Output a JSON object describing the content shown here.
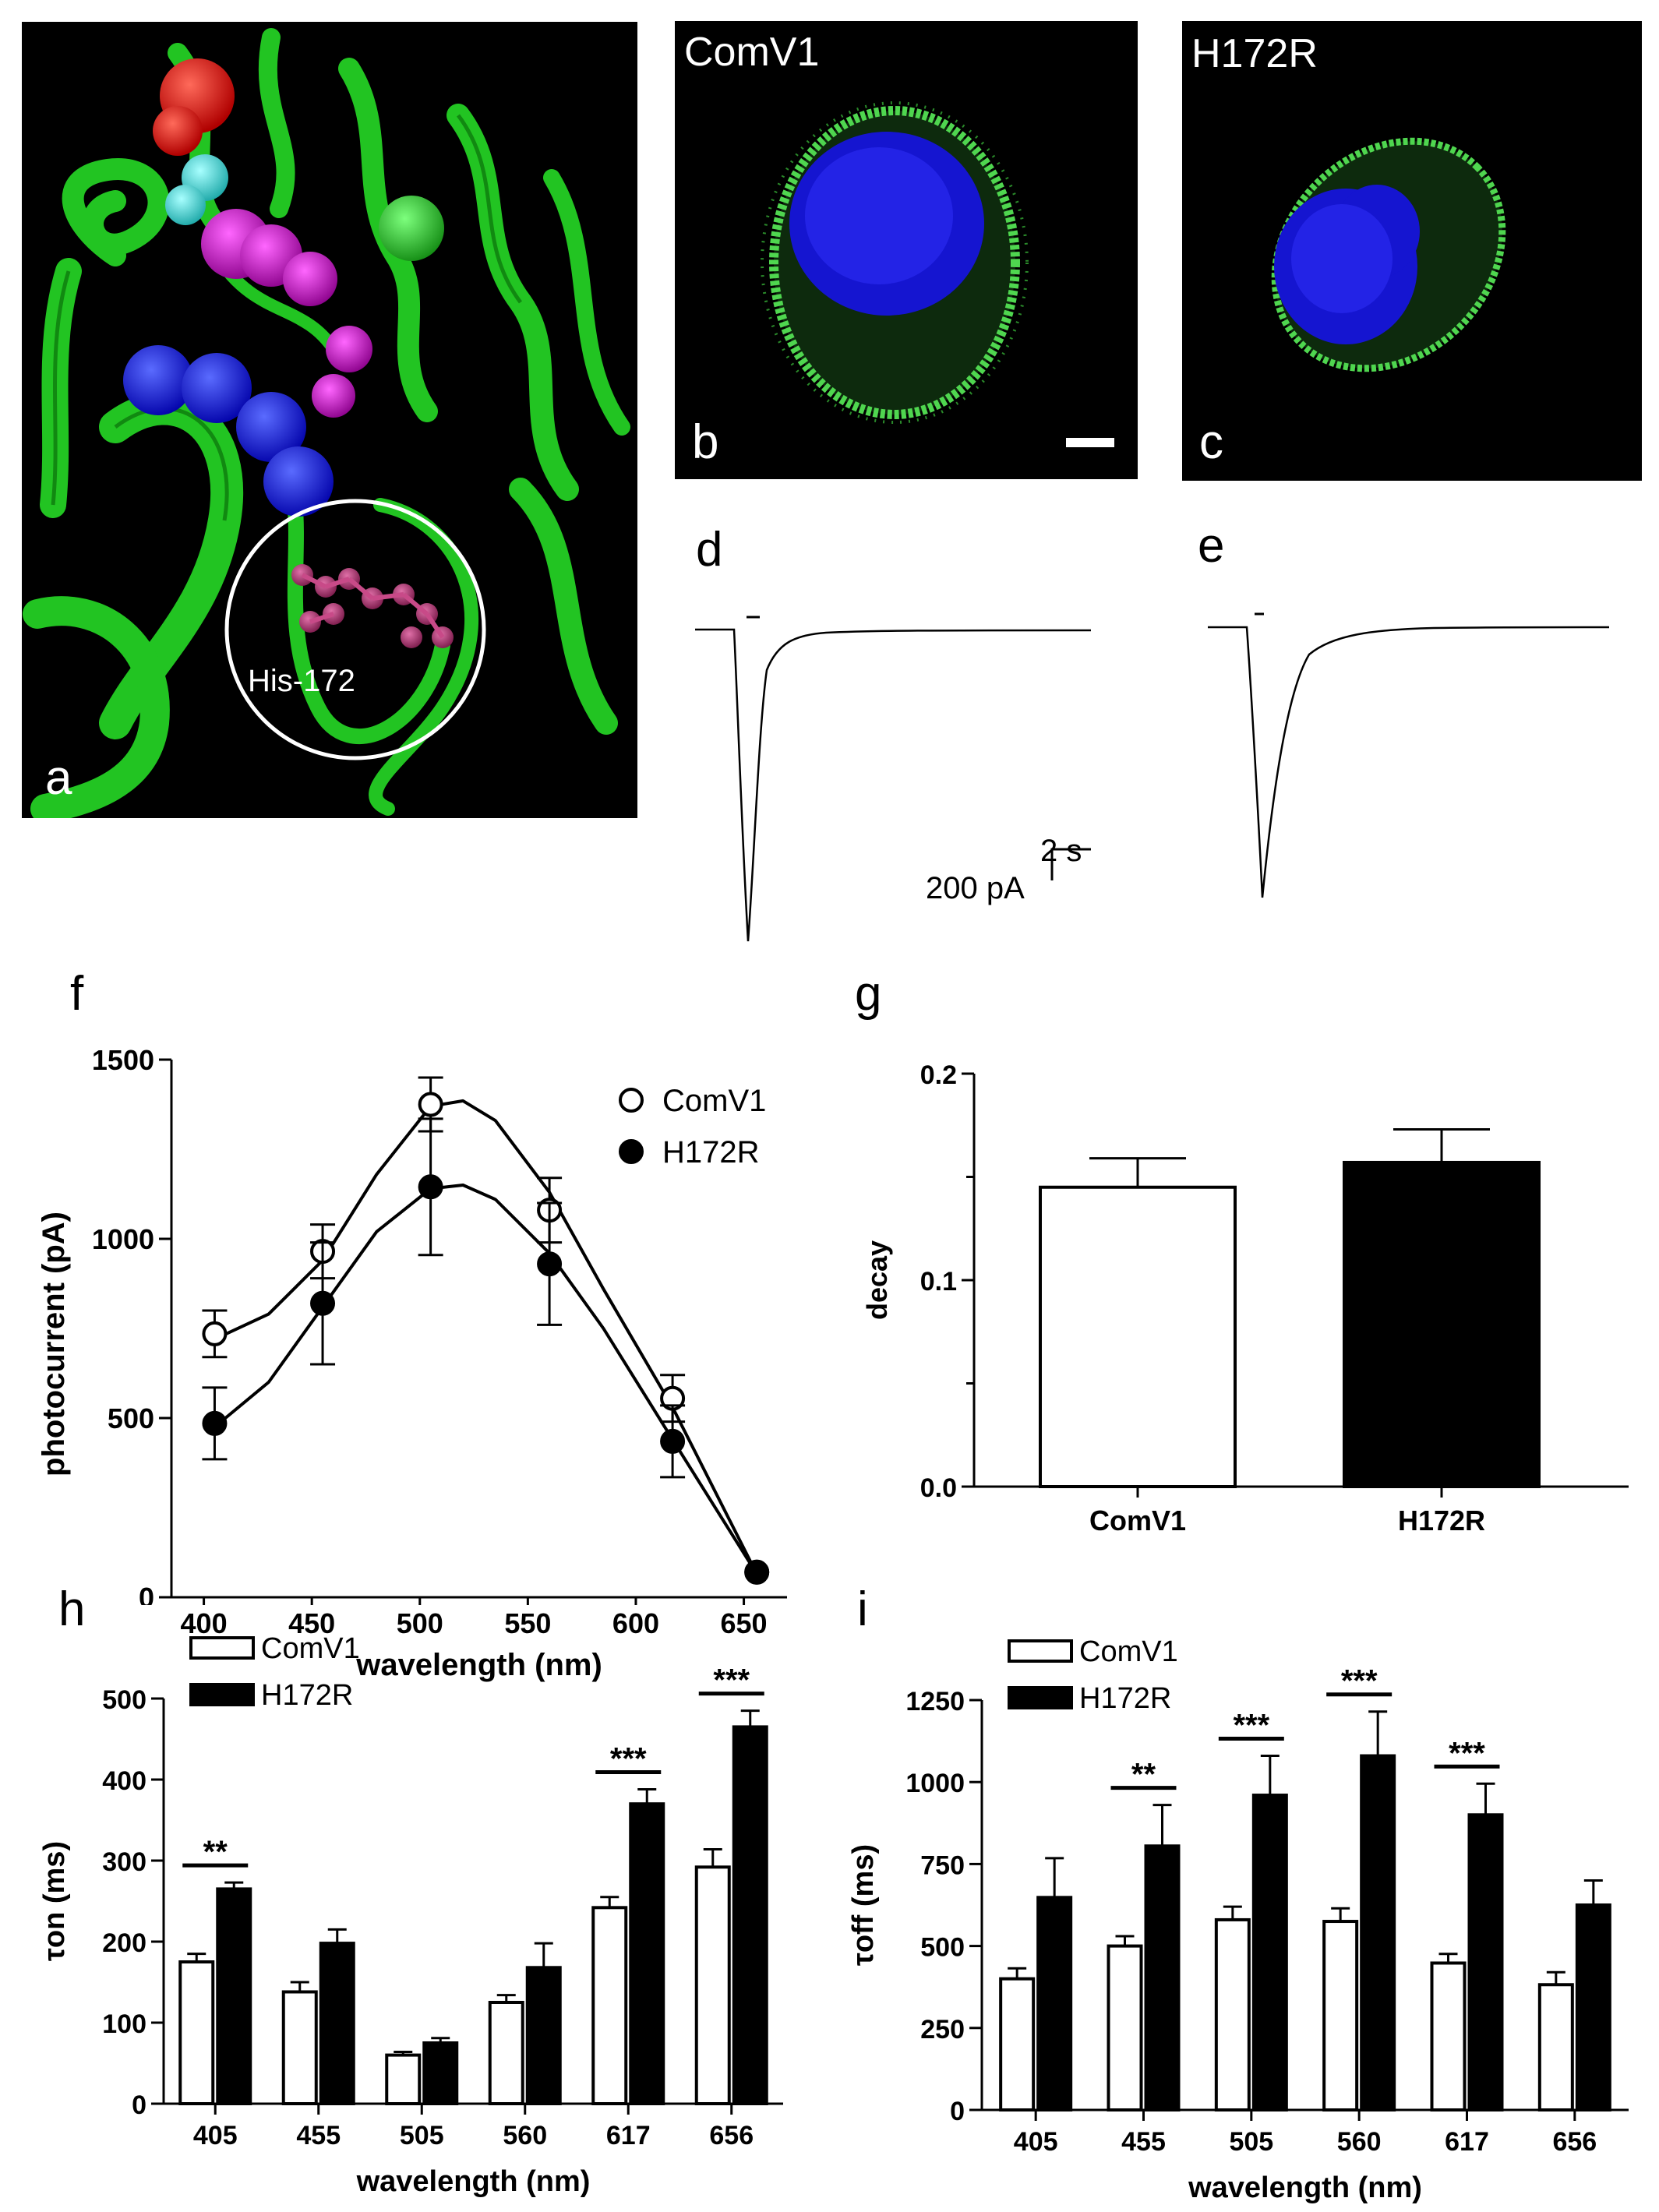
{
  "panels": {
    "a": {
      "letter": "a",
      "residue_label": "His-172"
    },
    "b": {
      "letter": "b",
      "title": "ComV1"
    },
    "c": {
      "letter": "c",
      "title": "H172R"
    },
    "d": {
      "letter": "d"
    },
    "e": {
      "letter": "e"
    },
    "f": {
      "letter": "f"
    },
    "g": {
      "letter": "g"
    },
    "h": {
      "letter": "h"
    },
    "i": {
      "letter": "i"
    }
  },
  "scale_bar": {
    "time": "2 s",
    "current": "200 pA"
  },
  "chart_data": [
    {
      "panel": "f",
      "type": "line",
      "xlabel": "wavelength (nm)",
      "ylabel": "photocurrent (pA)",
      "xlim": [
        385,
        670
      ],
      "ylim": [
        0,
        1500
      ],
      "xticks": [
        400,
        450,
        500,
        550,
        600,
        650
      ],
      "yticks": [
        0,
        500,
        1000,
        1500
      ],
      "legend": "top-right",
      "series": [
        {
          "name": "ComV1",
          "marker": "open-circle",
          "x": [
            405,
            455,
            505,
            560,
            617,
            656
          ],
          "y": [
            735,
            965,
            1375,
            1080,
            555,
            70
          ],
          "err": [
            65,
            75,
            75,
            90,
            65,
            0
          ],
          "fit_x": [
            405,
            430,
            455,
            480,
            505,
            520,
            535,
            560,
            585,
            617,
            656
          ],
          "fit_y": [
            720,
            790,
            940,
            1180,
            1370,
            1385,
            1330,
            1130,
            860,
            530,
            65
          ]
        },
        {
          "name": "H172R",
          "marker": "filled-circle",
          "x": [
            405,
            455,
            505,
            560,
            617,
            656
          ],
          "y": [
            485,
            820,
            1145,
            930,
            435,
            70
          ],
          "err": [
            100,
            170,
            190,
            170,
            100,
            0
          ],
          "fit_x": [
            405,
            430,
            455,
            480,
            505,
            520,
            535,
            560,
            585,
            617,
            656
          ],
          "fit_y": [
            475,
            600,
            810,
            1020,
            1140,
            1150,
            1110,
            960,
            750,
            440,
            65
          ]
        }
      ]
    },
    {
      "panel": "g",
      "type": "bar",
      "categories": [
        "ComV1",
        "H172R"
      ],
      "values": [
        0.145,
        0.157
      ],
      "err": [
        0.014,
        0.016
      ],
      "fills": [
        "#ffffff",
        "#000000"
      ],
      "ylabel": "decay",
      "ylim": [
        0,
        0.2
      ],
      "yticks": [
        "0.0",
        "0.1",
        "0.2"
      ],
      "ytick_values": [
        0,
        0.1,
        0.2
      ],
      "minor_yticks": [
        0.05,
        0.15
      ]
    },
    {
      "panel": "h",
      "type": "bar",
      "categories": [
        "405",
        "455",
        "505",
        "560",
        "617",
        "656"
      ],
      "xlabel": "wavelength (nm)",
      "ylabel": "τon (ms)",
      "ylim": [
        0,
        500
      ],
      "yticks": [
        0,
        100,
        200,
        300,
        400,
        500
      ],
      "legend": "top-left",
      "series": [
        {
          "name": "ComV1",
          "fill": "#ffffff",
          "values": [
            175,
            138,
            60,
            125,
            242,
            292
          ],
          "err": [
            10,
            12,
            4,
            9,
            13,
            22
          ]
        },
        {
          "name": "H172R",
          "fill": "#000000",
          "values": [
            265,
            198,
            75,
            168,
            370,
            465
          ],
          "err": [
            8,
            17,
            6,
            30,
            18,
            20
          ]
        }
      ],
      "significance": [
        {
          "index": 0,
          "label": "**"
        },
        {
          "index": 4,
          "label": "***"
        },
        {
          "index": 5,
          "label": "***"
        }
      ]
    },
    {
      "panel": "i",
      "type": "bar",
      "categories": [
        "405",
        "455",
        "505",
        "560",
        "617",
        "656"
      ],
      "xlabel": "wavelength (nm)",
      "ylabel": "τoff (ms)",
      "ylim": [
        0,
        1250
      ],
      "yticks": [
        0,
        250,
        500,
        750,
        1000,
        1250
      ],
      "legend": "top-left",
      "series": [
        {
          "name": "ComV1",
          "fill": "#ffffff",
          "values": [
            400,
            500,
            580,
            575,
            448,
            382
          ],
          "err": [
            32,
            30,
            40,
            40,
            28,
            38
          ]
        },
        {
          "name": "H172R",
          "fill": "#000000",
          "values": [
            648,
            805,
            960,
            1080,
            900,
            625
          ],
          "err": [
            120,
            125,
            120,
            135,
            95,
            75
          ]
        }
      ],
      "significance": [
        {
          "index": 1,
          "label": "**"
        },
        {
          "index": 2,
          "label": "***"
        },
        {
          "index": 3,
          "label": "***"
        },
        {
          "index": 4,
          "label": "***"
        }
      ]
    }
  ]
}
